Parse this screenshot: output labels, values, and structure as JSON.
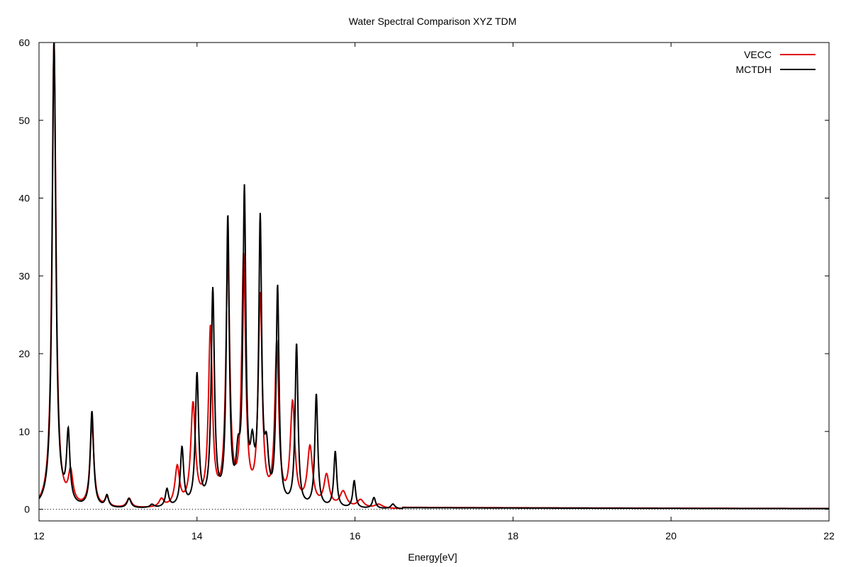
{
  "chart_data": {
    "type": "line",
    "title": "Water Spectral Comparison XYZ TDM",
    "xlabel": "Energy[eV]",
    "ylabel": "",
    "xlim": [
      12,
      22
    ],
    "ylim": [
      -1.5,
      60
    ],
    "xticks": [
      12,
      14,
      16,
      18,
      20,
      22
    ],
    "yticks": [
      0,
      10,
      20,
      30,
      40,
      50,
      60
    ],
    "grid": false,
    "legend_position": "top-right",
    "zero_line": {
      "y": 0,
      "style": "dotted"
    },
    "series": [
      {
        "name": "VECC",
        "color": "#e00000",
        "peaks": [
          {
            "x": 12.19,
            "h": 60,
            "w": 0.03
          },
          {
            "x": 12.4,
            "h": 4.0,
            "w": 0.035
          },
          {
            "x": 12.67,
            "h": 10.5,
            "w": 0.03
          },
          {
            "x": 12.86,
            "h": 1.2,
            "w": 0.03
          },
          {
            "x": 13.14,
            "h": 1.2,
            "w": 0.035
          },
          {
            "x": 13.55,
            "h": 1.0,
            "w": 0.035
          },
          {
            "x": 13.75,
            "h": 5.0,
            "w": 0.035
          },
          {
            "x": 13.95,
            "h": 13.0,
            "w": 0.035
          },
          {
            "x": 14.17,
            "h": 22.5,
            "w": 0.03
          },
          {
            "x": 14.39,
            "h": 31.0,
            "w": 0.03
          },
          {
            "x": 14.59,
            "h": 31.5,
            "w": 0.03
          },
          {
            "x": 14.8,
            "h": 26.5,
            "w": 0.03
          },
          {
            "x": 15.01,
            "h": 20.5,
            "w": 0.03
          },
          {
            "x": 15.21,
            "h": 13.0,
            "w": 0.035
          },
          {
            "x": 15.43,
            "h": 7.5,
            "w": 0.04
          },
          {
            "x": 15.64,
            "h": 4.0,
            "w": 0.04
          },
          {
            "x": 15.85,
            "h": 2.0,
            "w": 0.05
          },
          {
            "x": 16.07,
            "h": 1.0,
            "w": 0.05
          },
          {
            "x": 16.3,
            "h": 0.5,
            "w": 0.06
          }
        ],
        "baseline": 0.25
      },
      {
        "name": "MCTDH",
        "color": "#000000",
        "peaks": [
          {
            "x": 12.19,
            "h": 60,
            "w": 0.028
          },
          {
            "x": 12.37,
            "h": 9.0,
            "w": 0.025
          },
          {
            "x": 12.67,
            "h": 12.3,
            "w": 0.025
          },
          {
            "x": 12.86,
            "h": 1.5,
            "w": 0.025
          },
          {
            "x": 13.14,
            "h": 1.2,
            "w": 0.03
          },
          {
            "x": 13.43,
            "h": 0.4,
            "w": 0.03
          },
          {
            "x": 13.62,
            "h": 2.3,
            "w": 0.025
          },
          {
            "x": 13.81,
            "h": 7.5,
            "w": 0.025
          },
          {
            "x": 14.0,
            "h": 16.8,
            "w": 0.025
          },
          {
            "x": 14.2,
            "h": 27.5,
            "w": 0.025
          },
          {
            "x": 14.39,
            "h": 36.5,
            "w": 0.022
          },
          {
            "x": 14.52,
            "h": 5.0,
            "w": 0.03
          },
          {
            "x": 14.6,
            "h": 39.5,
            "w": 0.022
          },
          {
            "x": 14.7,
            "h": 6.0,
            "w": 0.03
          },
          {
            "x": 14.8,
            "h": 35.8,
            "w": 0.022
          },
          {
            "x": 14.88,
            "h": 6.0,
            "w": 0.03
          },
          {
            "x": 15.02,
            "h": 27.8,
            "w": 0.022
          },
          {
            "x": 15.26,
            "h": 20.8,
            "w": 0.022
          },
          {
            "x": 15.51,
            "h": 14.5,
            "w": 0.022
          },
          {
            "x": 15.75,
            "h": 7.2,
            "w": 0.022
          },
          {
            "x": 15.99,
            "h": 3.5,
            "w": 0.022
          },
          {
            "x": 16.24,
            "h": 1.4,
            "w": 0.025
          },
          {
            "x": 16.48,
            "h": 0.6,
            "w": 0.03
          }
        ],
        "baseline": 0.2
      }
    ]
  }
}
